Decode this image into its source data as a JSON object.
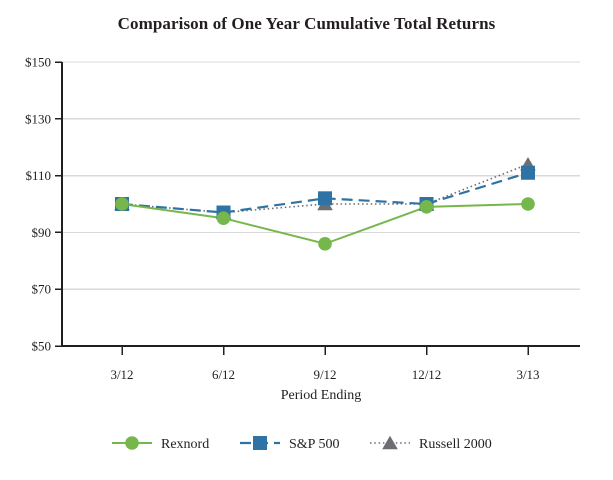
{
  "chart_data": {
    "type": "line",
    "title": "Comparison of One Year Cumulative Total Returns",
    "xlabel": "Period Ending",
    "ylabel": "",
    "categories": [
      "3/12",
      "6/12",
      "9/12",
      "12/12",
      "3/13"
    ],
    "series": [
      {
        "name": "Rexnord",
        "values": [
          100,
          95,
          86,
          99,
          100
        ],
        "color": "#76b74b",
        "marker": "circle",
        "line_style": "solid"
      },
      {
        "name": "S&P 500",
        "values": [
          100,
          97,
          102,
          100,
          111
        ],
        "color": "#2e73a4",
        "marker": "square",
        "line_style": "dashed"
      },
      {
        "name": "Russell 2000",
        "values": [
          100,
          97,
          100,
          100,
          114
        ],
        "color": "#6d6e71",
        "marker": "triangle",
        "line_style": "dotted"
      }
    ],
    "ylim": [
      50,
      150
    ],
    "yticks": [
      {
        "label": "$150",
        "value": 150
      },
      {
        "label": "$130",
        "value": 130
      },
      {
        "label": "$110",
        "value": 110
      },
      {
        "label": "$90",
        "value": 90
      },
      {
        "label": "$70",
        "value": 70
      },
      {
        "label": "$50",
        "value": 50
      }
    ],
    "grid": "horizontal",
    "legend_position": "bottom",
    "colors": {
      "axis": "#231f20",
      "grid": "#d9d9d9",
      "text": "#231f20",
      "background": "#ffffff"
    }
  }
}
